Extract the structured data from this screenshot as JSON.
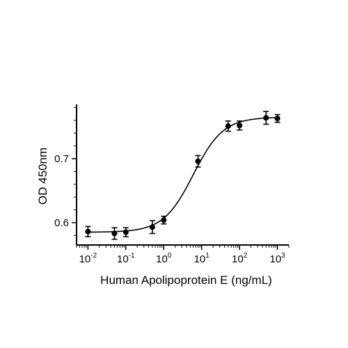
{
  "chart_data": {
    "type": "scatter",
    "title": "",
    "xlabel": "Human Apolipoprotein E (ng/mL)",
    "ylabel": "OD 450nm",
    "x_scale": "log",
    "xlim": [
      0.005,
      2000
    ],
    "ylim": [
      0.565,
      0.785
    ],
    "x_ticks": [
      {
        "value": 0.01,
        "base": "10",
        "exp": "-2"
      },
      {
        "value": 0.1,
        "base": "10",
        "exp": "-1"
      },
      {
        "value": 1,
        "base": "10",
        "exp": "0"
      },
      {
        "value": 10,
        "base": "10",
        "exp": "1"
      },
      {
        "value": 100,
        "base": "10",
        "exp": "2"
      },
      {
        "value": 1000,
        "base": "10",
        "exp": "3"
      }
    ],
    "y_ticks": [
      {
        "value": 0.6,
        "label": "0.6"
      },
      {
        "value": 0.7,
        "label": "0.7"
      }
    ],
    "grid": false,
    "legend": "none",
    "series": [
      {
        "points": [
          {
            "x": 0.01,
            "y": 0.586,
            "err": 0.008
          },
          {
            "x": 0.05,
            "y": 0.583,
            "err": 0.009
          },
          {
            "x": 0.1,
            "y": 0.585,
            "err": 0.007
          },
          {
            "x": 0.5,
            "y": 0.593,
            "err": 0.01
          },
          {
            "x": 1,
            "y": 0.604,
            "err": 0.006
          },
          {
            "x": 8,
            "y": 0.696,
            "err": 0.009
          },
          {
            "x": 50,
            "y": 0.751,
            "err": 0.008
          },
          {
            "x": 100,
            "y": 0.752,
            "err": 0.007
          },
          {
            "x": 500,
            "y": 0.764,
            "err": 0.01
          },
          {
            "x": 1000,
            "y": 0.763,
            "err": 0.006
          }
        ],
        "fit": {
          "model": "4PL",
          "bottom": 0.585,
          "top": 0.765,
          "ec50": 6,
          "hill": 1.1,
          "x_range": [
            0.01,
            1000
          ]
        }
      }
    ]
  }
}
